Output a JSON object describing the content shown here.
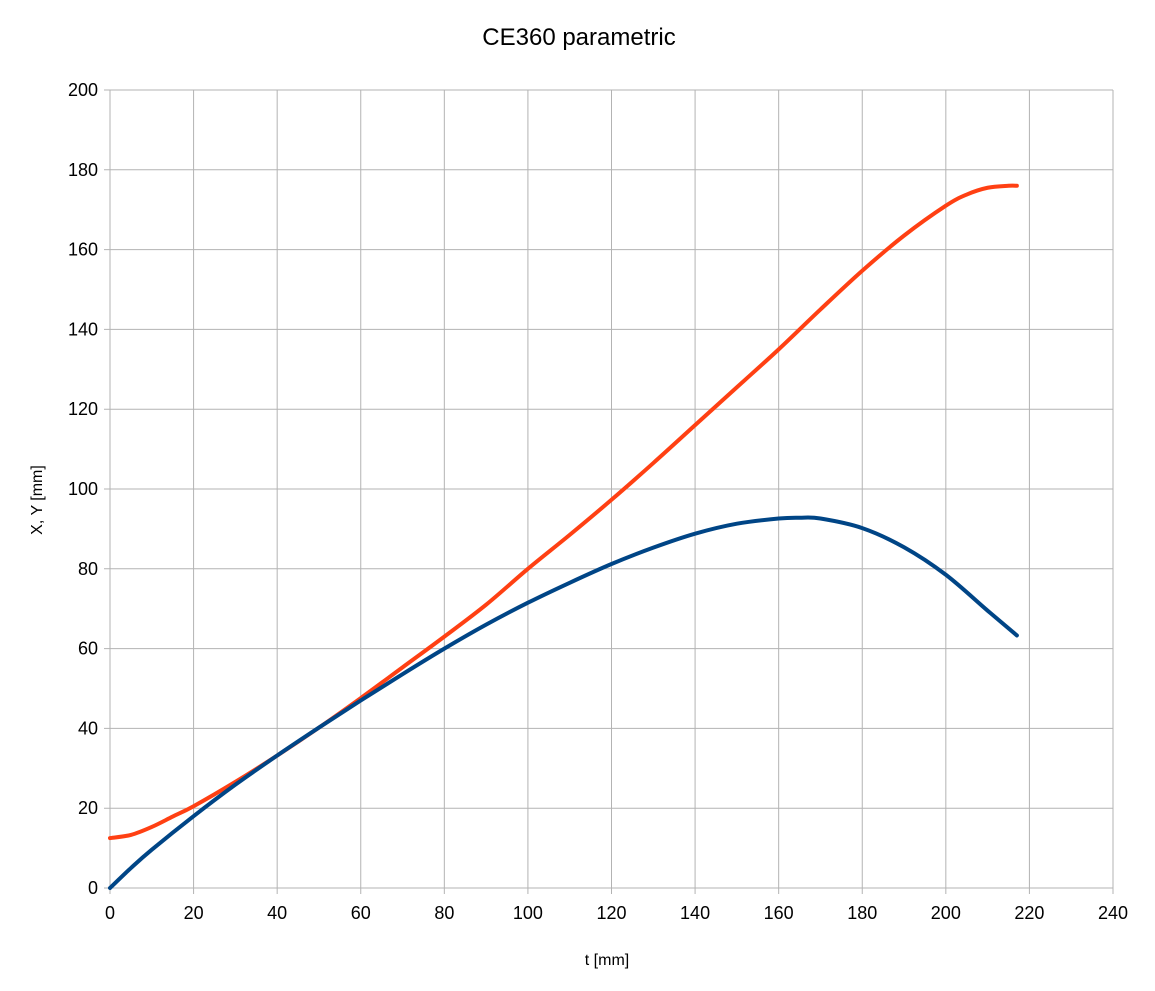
{
  "chart_data": {
    "type": "line",
    "title": "CE360 parametric",
    "xlabel": "t [mm]",
    "ylabel": "X, Y [mm]",
    "xlim": [
      0,
      240
    ],
    "ylim": [
      0,
      200
    ],
    "x_ticks": [
      "0",
      "20",
      "40",
      "60",
      "80",
      "100",
      "120",
      "140",
      "160",
      "180",
      "200",
      "220",
      "240"
    ],
    "y_ticks": [
      "0",
      "20",
      "40",
      "60",
      "80",
      "100",
      "120",
      "140",
      "160",
      "180",
      "200"
    ],
    "grid": true,
    "legend": "none",
    "series": [
      {
        "color": "#ff4013",
        "x": [
          0,
          5,
          10,
          15,
          20,
          30,
          40,
          50,
          60,
          70,
          80,
          90,
          100,
          110,
          120,
          130,
          140,
          150,
          160,
          170,
          180,
          190,
          200,
          205,
          210,
          215,
          217
        ],
        "y": [
          12.5,
          13.3,
          15.3,
          17.9,
          20.5,
          26.6,
          33.2,
          40.2,
          47.6,
          55.3,
          63.0,
          71.0,
          80.0,
          88.5,
          97.3,
          106.5,
          116.0,
          125.5,
          135.0,
          145.0,
          154.7,
          163.5,
          171.0,
          173.8,
          175.5,
          176.0,
          176.0
        ]
      },
      {
        "color": "#004586",
        "x": [
          0,
          5,
          10,
          20,
          30,
          40,
          50,
          60,
          70,
          80,
          90,
          100,
          110,
          120,
          130,
          140,
          150,
          160,
          165,
          170,
          180,
          190,
          200,
          210,
          217
        ],
        "y": [
          0,
          5.0,
          9.6,
          18.0,
          25.9,
          33.2,
          40.2,
          47.0,
          53.6,
          60.0,
          66.0,
          71.5,
          76.5,
          81.2,
          85.3,
          88.8,
          91.3,
          92.6,
          92.8,
          92.6,
          90.2,
          85.4,
          78.5,
          69.5,
          63.3
        ]
      }
    ]
  }
}
